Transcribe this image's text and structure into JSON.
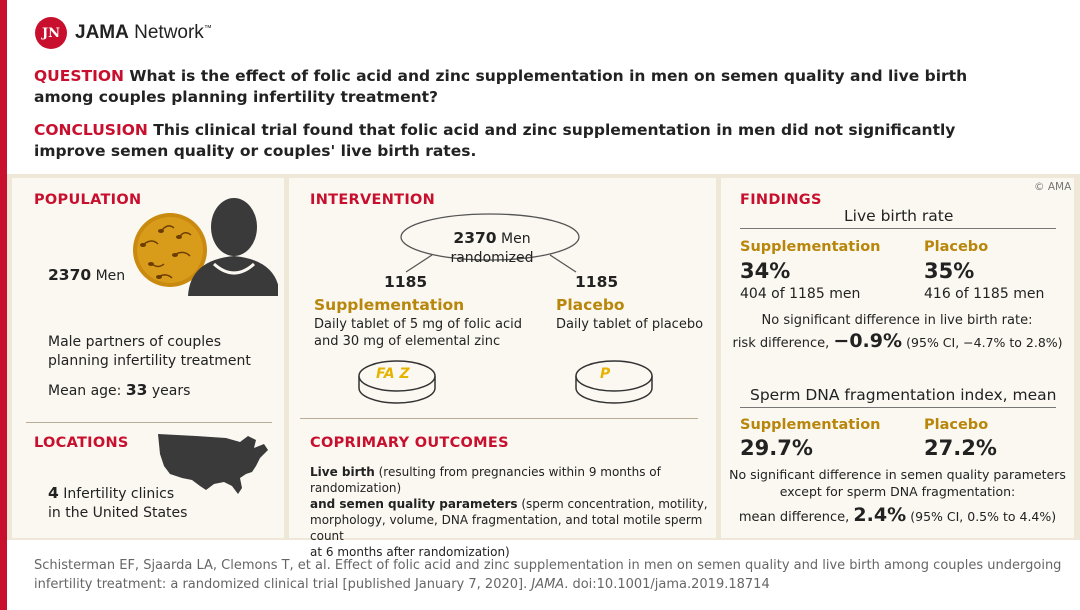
{
  "logo": {
    "mark": "JN",
    "brand_bold": "JAMA",
    "brand_rest": " Network",
    "tm": "™"
  },
  "question": {
    "label": "QUESTION",
    "text": "What is the effect of folic acid and zinc supplementation in men on semen quality and live birth among couples planning infertility treatment?"
  },
  "conclusion": {
    "label": "CONCLUSION",
    "text": "This clinical trial found that folic acid and zinc supplementation in men did not significantly improve semen quality or couples' live birth rates."
  },
  "population": {
    "heading": "POPULATION",
    "count": "2370",
    "count_unit": "Men",
    "desc_line1": "Male partners of couples",
    "desc_line2": "planning infertility treatment",
    "age_label": "Mean age:",
    "age_value": "33",
    "age_unit": "years"
  },
  "locations": {
    "heading": "LOCATIONS",
    "count": "4",
    "line1": "Infertility clinics",
    "line2": "in the United States"
  },
  "intervention": {
    "heading": "INTERVENTION",
    "randomized_count": "2370",
    "randomized_text": "Men randomized",
    "arm1": {
      "n": "1185",
      "name": "Supplementation",
      "desc1": "Daily tablet of 5 mg of folic acid",
      "desc2": "and 30 mg of elemental zinc",
      "pill": "FA Z"
    },
    "arm2": {
      "n": "1185",
      "name": "Placebo",
      "desc1": "Daily tablet of placebo",
      "pill": "P"
    }
  },
  "outcomes": {
    "heading": "COPRIMARY OUTCOMES",
    "bold1": "Live birth",
    "text1": " (resulting from pregnancies within 9 months of randomization)",
    "bold2": "and semen quality parameters",
    "text2": " (sperm concentration, motility,",
    "line3": "morphology, volume, DNA fragmentation, and total motile sperm count",
    "line4": "at 6 months after randomization)"
  },
  "findings": {
    "heading": "FINDINGS",
    "copyright": "© AMA",
    "live_birth": {
      "title": "Live birth rate",
      "supp_label": "Supplementation",
      "supp_value": "34%",
      "supp_sub": "404 of 1185 men",
      "plac_label": "Placebo",
      "plac_value": "35%",
      "plac_sub": "416 of 1185 men",
      "note": "No significant difference in live birth rate:",
      "rd_label": "risk difference,",
      "rd_value": "−0.9%",
      "rd_ci": "(95% CI, −4.7% to 2.8%)"
    },
    "dna": {
      "title": "Sperm DNA fragmentation index, mean",
      "supp_label": "Supplementation",
      "supp_value": "29.7%",
      "plac_label": "Placebo",
      "plac_value": "27.2%",
      "note1": "No significant difference in semen quality parameters",
      "note2": "except for sperm DNA fragmentation:",
      "md_label": "mean difference,",
      "md_value": "2.4%",
      "md_ci": "(95% CI, 0.5% to 4.4%)"
    }
  },
  "footer": {
    "line1": "Schisterman EF, Sjaarda LA, Clemons T, et al. Effect of folic acid and zinc supplementation in men on semen quality and live birth among couples undergoing",
    "line2a": "infertility treatment: a randomized clinical trial [published January 7, 2020].",
    "journal": "JAMA",
    "line2b": ". doi:10.1001/jama.2019.18714"
  },
  "colors": {
    "accent": "#c8102e",
    "gold": "#b8860b",
    "panel": "#fbf8f1",
    "band": "#efe8d9"
  },
  "icons": [
    "person-icon",
    "sperm-circle-icon",
    "us-map-icon",
    "pill-icon"
  ]
}
